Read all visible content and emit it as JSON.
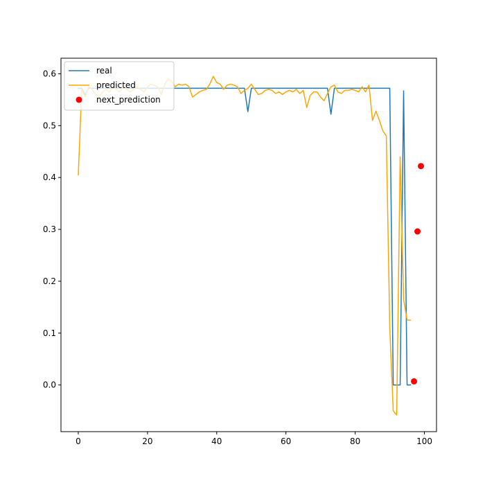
{
  "chart_data": {
    "type": "line",
    "title": "",
    "xlabel": "",
    "ylabel": "",
    "xlim": [
      -5,
      103.5
    ],
    "ylim": [
      -0.09,
      0.63
    ],
    "xticks": [
      0,
      20,
      40,
      60,
      80,
      100
    ],
    "xtick_labels": [
      "0",
      "20",
      "40",
      "60",
      "80",
      "100"
    ],
    "yticks": [
      0.0,
      0.1,
      0.2,
      0.3,
      0.4,
      0.5,
      0.6
    ],
    "ytick_labels": [
      "0.0",
      "0.1",
      "0.2",
      "0.3",
      "0.4",
      "0.5",
      "0.6"
    ],
    "grid": false,
    "legend_position": "top-left",
    "series": [
      {
        "name": "real",
        "color": "#1f77b4",
        "kind": "line",
        "x": [
          0,
          1,
          2,
          3,
          48,
          49,
          50,
          72,
          73,
          74,
          90,
          91,
          92,
          93,
          94,
          95,
          96
        ],
        "y": [
          0.572,
          0.572,
          0.56,
          0.572,
          0.572,
          0.527,
          0.572,
          0.572,
          0.522,
          0.572,
          0.572,
          0.0,
          0.0,
          0.0,
          0.567,
          0.0,
          0.0
        ]
      },
      {
        "name": "predicted",
        "color": "#ffa500",
        "kind": "line",
        "x": [
          0,
          1,
          2,
          3,
          4,
          5,
          6,
          7,
          8,
          9,
          10,
          11,
          12,
          13,
          14,
          15,
          16,
          17,
          18,
          19,
          20,
          21,
          22,
          23,
          24,
          25,
          26,
          27,
          28,
          29,
          30,
          31,
          32,
          33,
          34,
          35,
          36,
          37,
          38,
          39,
          40,
          41,
          42,
          43,
          44,
          45,
          46,
          47,
          48,
          49,
          50,
          51,
          52,
          53,
          54,
          55,
          56,
          57,
          58,
          59,
          60,
          61,
          62,
          63,
          64,
          65,
          66,
          67,
          68,
          69,
          70,
          71,
          72,
          73,
          74,
          75,
          76,
          77,
          78,
          79,
          80,
          81,
          82,
          83,
          84,
          85,
          86,
          87,
          88,
          89,
          90,
          91,
          92,
          93,
          94,
          95,
          96
        ],
        "y": [
          0.405,
          0.57,
          0.555,
          0.575,
          0.57,
          0.56,
          0.555,
          0.565,
          0.57,
          0.565,
          0.575,
          0.57,
          0.565,
          0.575,
          0.57,
          0.565,
          0.57,
          0.575,
          0.57,
          0.565,
          0.575,
          0.58,
          0.578,
          0.575,
          0.56,
          0.58,
          0.59,
          0.585,
          0.575,
          0.58,
          0.578,
          0.58,
          0.575,
          0.555,
          0.56,
          0.565,
          0.568,
          0.57,
          0.58,
          0.595,
          0.583,
          0.58,
          0.57,
          0.578,
          0.58,
          0.578,
          0.575,
          0.562,
          0.568,
          0.572,
          0.58,
          0.57,
          0.56,
          0.562,
          0.568,
          0.57,
          0.568,
          0.562,
          0.565,
          0.56,
          0.565,
          0.568,
          0.565,
          0.57,
          0.562,
          0.568,
          0.535,
          0.558,
          0.565,
          0.565,
          0.555,
          0.548,
          0.562,
          0.575,
          0.578,
          0.565,
          0.562,
          0.568,
          0.568,
          0.57,
          0.568,
          0.565,
          0.575,
          0.565,
          0.578,
          0.51,
          0.528,
          0.51,
          0.49,
          0.48,
          0.11,
          -0.05,
          -0.058,
          0.44,
          0.165,
          0.125,
          0.125
        ]
      },
      {
        "name": "next_prediction",
        "color": "#ff0000",
        "kind": "scatter",
        "x": [
          97,
          98,
          99
        ],
        "y": [
          0.007,
          0.296,
          0.422
        ]
      }
    ]
  }
}
